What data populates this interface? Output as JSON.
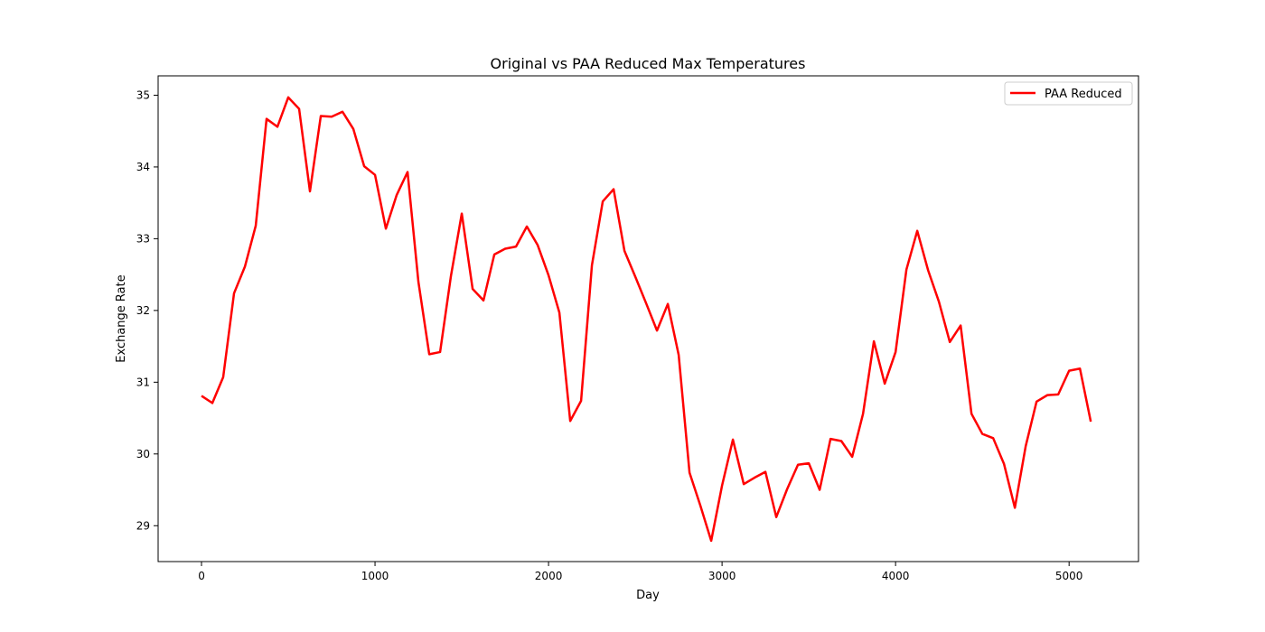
{
  "chart_data": {
    "type": "line",
    "title": "Original vs PAA Reduced Max Temperatures",
    "xlabel": "Day",
    "ylabel": "Exchange Rate",
    "xlim": [
      -250,
      5400
    ],
    "ylim": [
      28.5,
      35.27
    ],
    "xticks": [
      0,
      1000,
      2000,
      3000,
      4000,
      5000
    ],
    "yticks": [
      29,
      30,
      31,
      32,
      33,
      34,
      35
    ],
    "grid": false,
    "legend_position": "top-right",
    "series": [
      {
        "name": "PAA Reduced",
        "color": "#ff0000",
        "x": [
          0,
          62.5,
          125,
          187.5,
          250,
          312.5,
          375,
          437.5,
          500,
          562.5,
          625,
          687.5,
          750,
          812.5,
          875,
          937.5,
          1000,
          1062.5,
          1125,
          1187.5,
          1250,
          1312.5,
          1375,
          1437.5,
          1500,
          1562.5,
          1625,
          1687.5,
          1750,
          1812.5,
          1875,
          1937.5,
          2000,
          2062.5,
          2125,
          2187.5,
          2250,
          2312.5,
          2375,
          2437.5,
          2500,
          2562.5,
          2625,
          2687.5,
          2750,
          2812.5,
          2875,
          2937.5,
          3000,
          3062.5,
          3125,
          3187.5,
          3250,
          3312.5,
          3375,
          3437.5,
          3500,
          3562.5,
          3625,
          3687.5,
          3750,
          3812.5,
          3875,
          3937.5,
          4000,
          4062.5,
          4125,
          4187.5,
          4250,
          4312.5,
          4375,
          4437.5,
          4500,
          4562.5,
          4625,
          4687.5,
          4750,
          4812.5,
          4875,
          4937.5,
          5000,
          5062.5,
          5125
        ],
        "values": [
          30.81,
          30.71,
          31.07,
          32.24,
          32.61,
          33.18,
          34.67,
          34.56,
          34.97,
          34.81,
          33.66,
          34.71,
          34.7,
          34.77,
          34.53,
          34.01,
          33.89,
          33.14,
          33.61,
          33.93,
          32.4,
          31.39,
          31.42,
          32.48,
          33.35,
          32.3,
          32.14,
          32.78,
          32.86,
          32.89,
          33.17,
          32.91,
          32.49,
          31.97,
          30.46,
          30.74,
          32.63,
          33.52,
          33.69,
          32.83,
          32.47,
          32.1,
          31.72,
          32.09,
          31.38,
          29.74,
          29.28,
          28.79,
          29.56,
          30.2,
          29.58,
          29.67,
          29.75,
          29.12,
          29.51,
          29.85,
          29.87,
          29.5,
          30.21,
          30.18,
          29.96,
          30.56,
          31.57,
          30.98,
          31.42,
          32.57,
          33.11,
          32.56,
          32.12,
          31.56,
          31.79,
          30.56,
          30.28,
          30.22,
          29.86,
          29.25,
          30.11,
          30.73,
          30.82,
          30.83,
          31.16,
          31.19,
          30.45
        ]
      }
    ]
  }
}
